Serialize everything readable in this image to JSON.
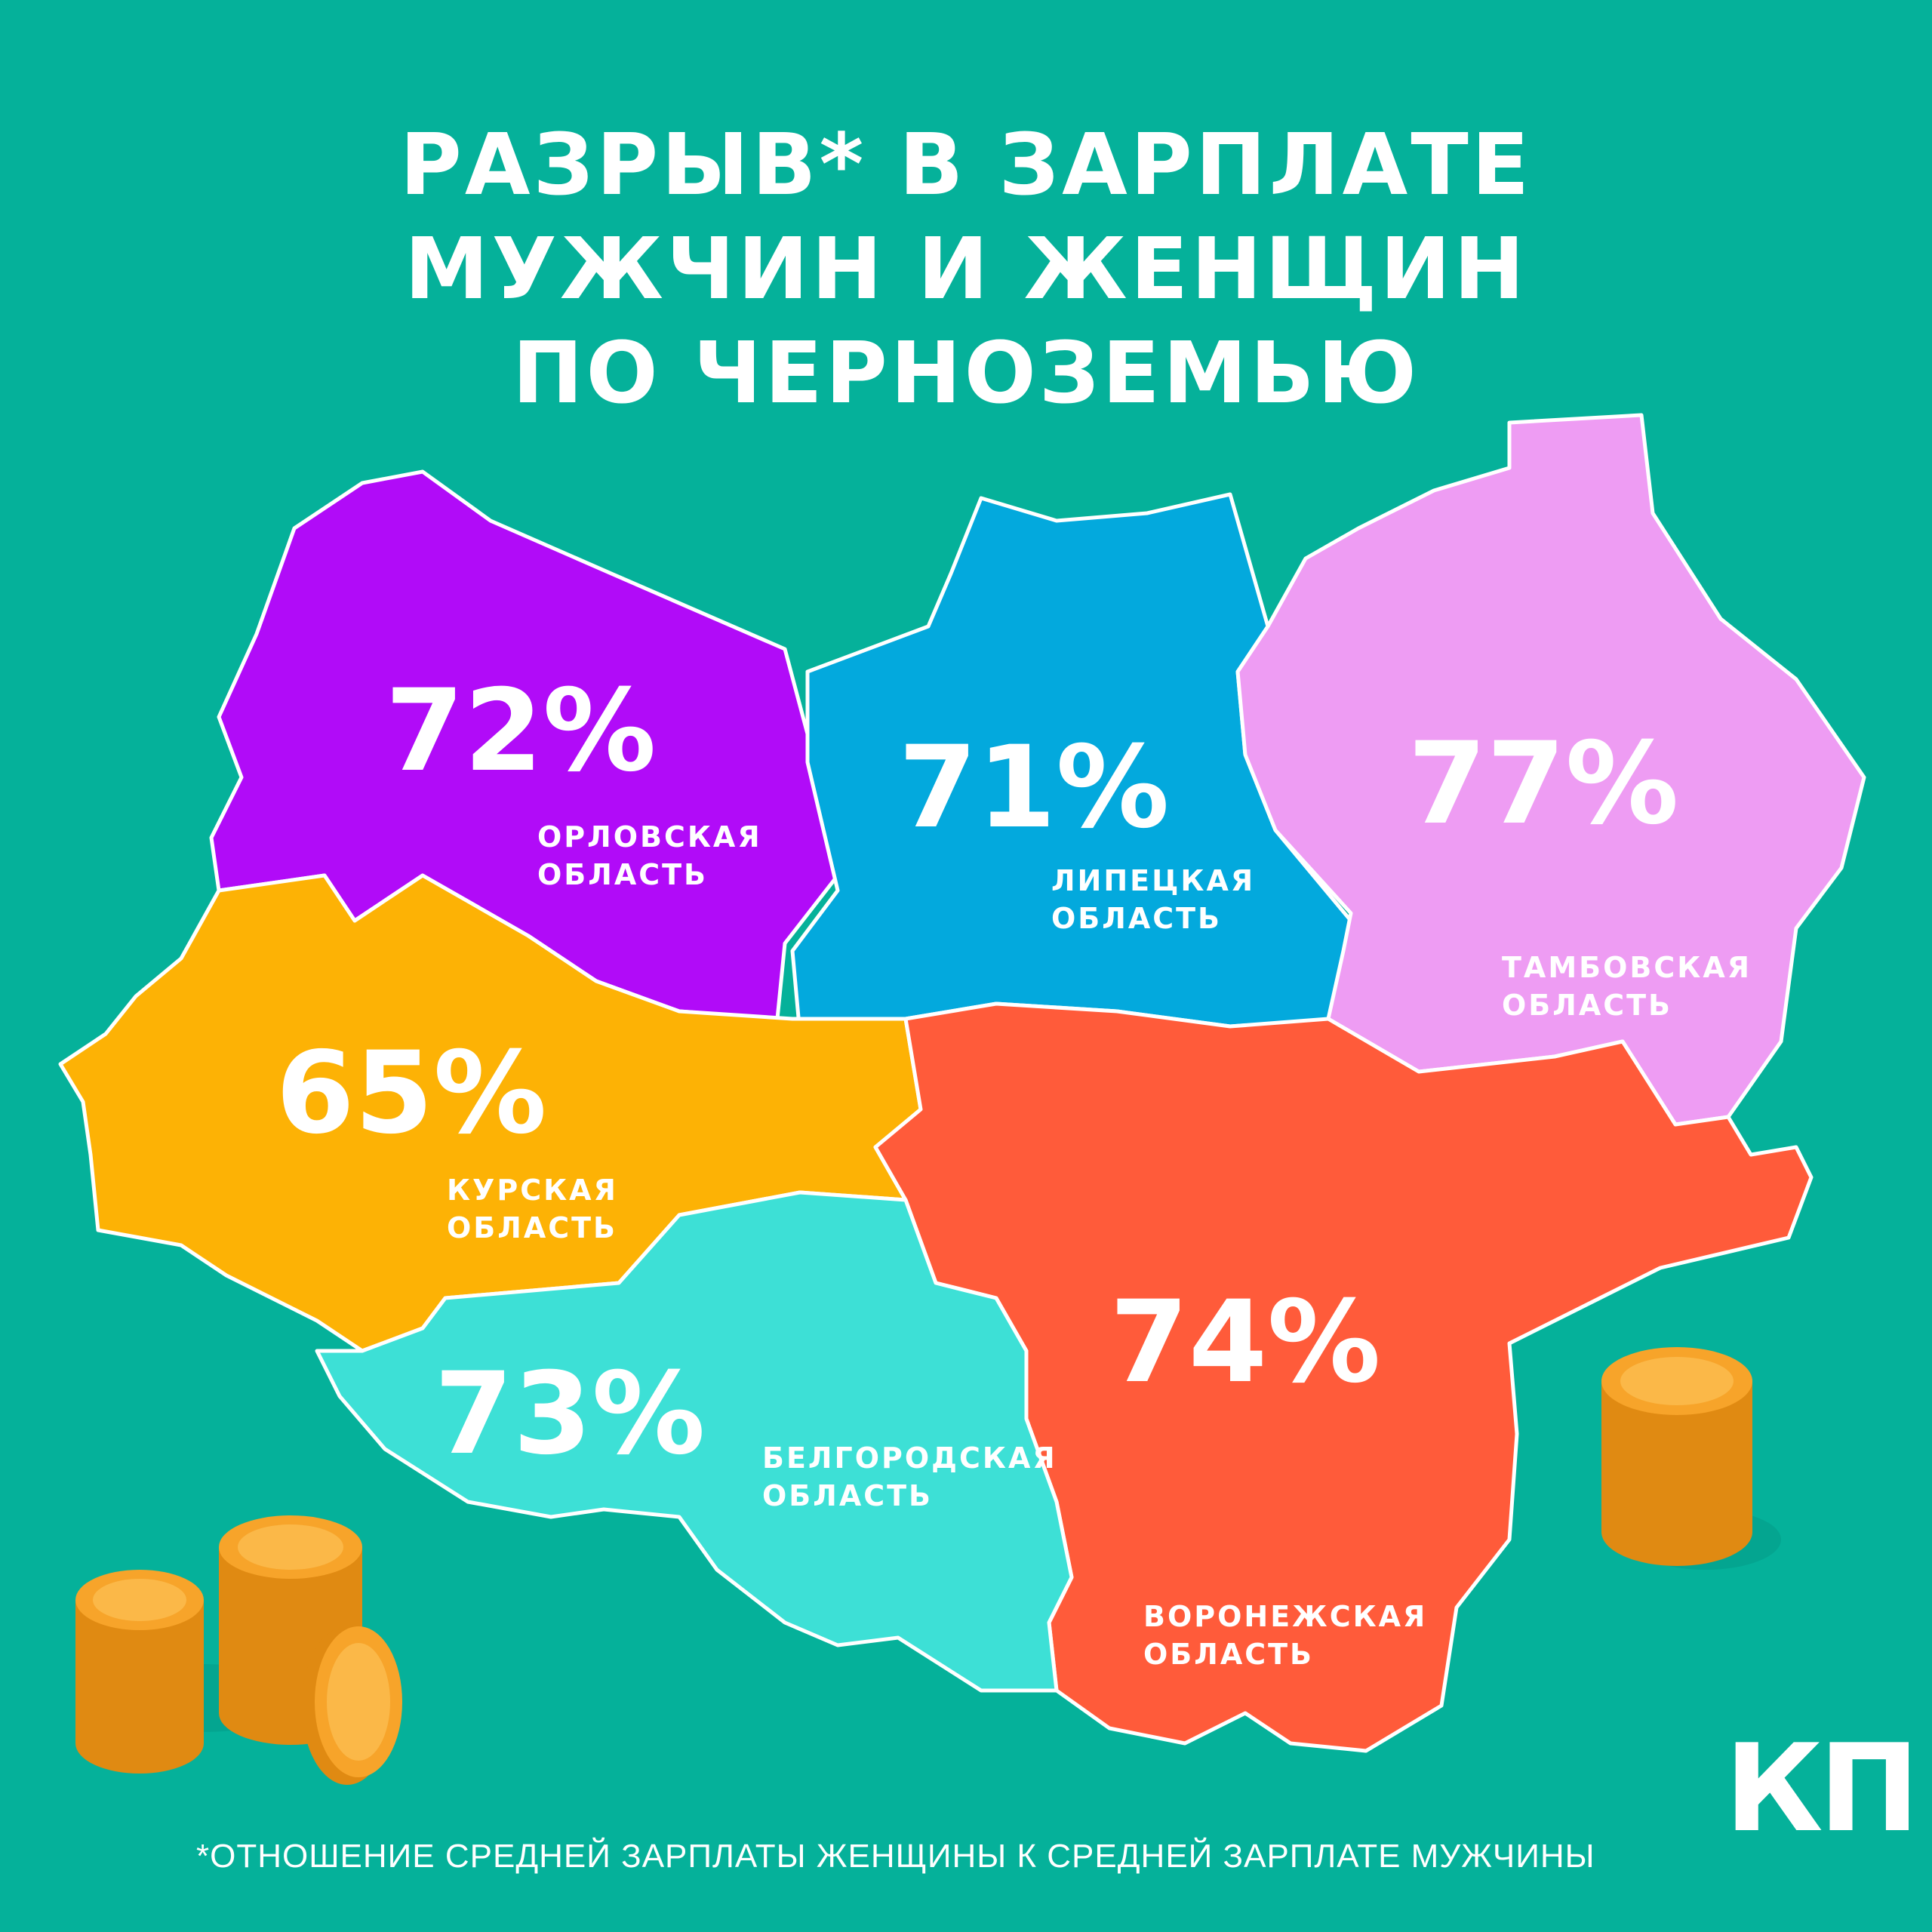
{
  "title": {
    "line1": "РАЗРЫВ* В ЗАРПЛАТЕ",
    "line2": "МУЖЧИН И ЖЕНЩИН",
    "line3": "ПО ЧЕРНОЗЕМЬЮ"
  },
  "regions": [
    {
      "name_line1": "ОРЛОВСКАЯ",
      "name_line2": "ОБЛАСТЬ",
      "value": "72%",
      "color": "#B10BF8"
    },
    {
      "name_line1": "ЛИПЕЦКАЯ",
      "name_line2": "ОБЛАСТЬ",
      "value": "71%",
      "color": "#03A9DD"
    },
    {
      "name_line1": "ТАМБОВСКАЯ",
      "name_line2": "ОБЛАСТЬ",
      "value": "77%",
      "color": "#EE9CF3"
    },
    {
      "name_line1": "КУРСКАЯ",
      "name_line2": "ОБЛАСТЬ",
      "value": "65%",
      "color": "#FDB205"
    },
    {
      "name_line1": "ВОРОНЕЖСКАЯ",
      "name_line2": "ОБЛАСТЬ",
      "value": "74%",
      "color": "#FF5B3A"
    },
    {
      "name_line1": "БЕЛГОРОДСКАЯ",
      "name_line2": "ОБЛАСТЬ",
      "value": "73%",
      "color": "#3DE0D6"
    }
  ],
  "footnote": "*ОТНОШЕНИЕ СРЕДНЕЙ ЗАРПЛАТЫ ЖЕНЩИНЫ К СРЕДНЕЙ ЗАРПЛАТЕ МУЖЧИНЫ",
  "logo": {
    "line1": "КП",
    "line2": ""
  },
  "colors": {
    "background": "#05B19A",
    "coin": "#F7A42A",
    "coin_dark": "#E08A12"
  }
}
